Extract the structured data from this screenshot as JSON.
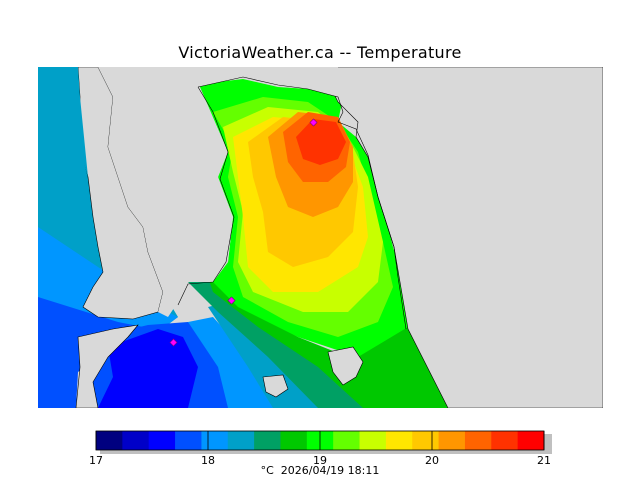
{
  "title": "VictoriaWeather.ca -- Temperature",
  "colorbar": {
    "min": 17,
    "max": 21,
    "tick_labels": [
      "17",
      "18",
      "19",
      "20",
      "21"
    ],
    "colors": [
      "#000080",
      "#0000c8",
      "#0000ff",
      "#0050ff",
      "#0096ff",
      "#00a0c8",
      "#00a064",
      "#00c800",
      "#00ff00",
      "#64ff00",
      "#c8ff00",
      "#ffe600",
      "#ffc800",
      "#ff9600",
      "#ff6400",
      "#ff3200",
      "#ff0000"
    ]
  },
  "footer": {
    "unit": "°C",
    "timestamp": "2026/04/19 18:11"
  },
  "map": {
    "land_color": "#d9d9d9",
    "station_markers": 3
  }
}
